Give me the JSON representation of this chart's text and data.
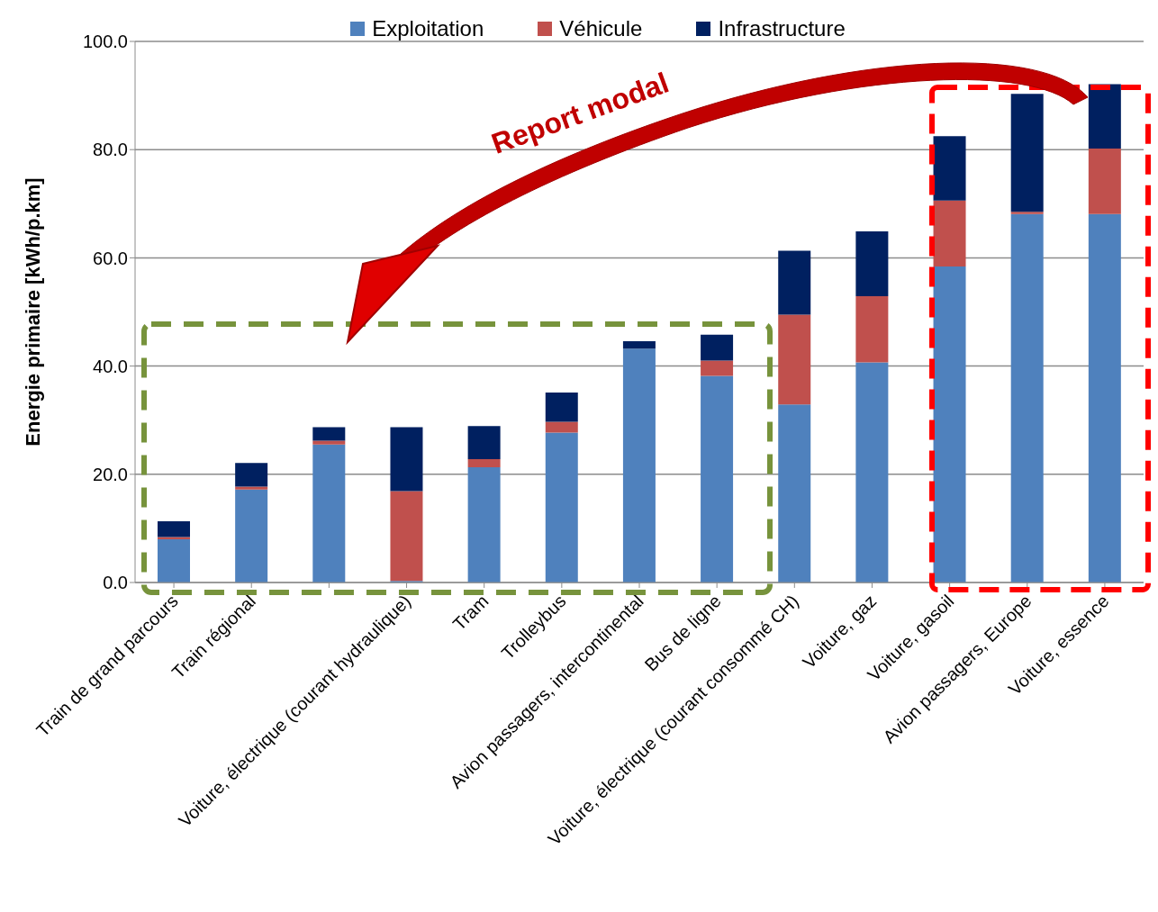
{
  "chart_data": {
    "type": "bar",
    "stacked": true,
    "ylabel": "Energie primaire [kWh/p.km]",
    "categories": [
      "Train de grand parcours",
      "Train régional",
      null,
      "Voiture, électrique (courant hydraulique)",
      "Tram",
      "Trolleybus",
      "Avion passagers, intercontinental",
      "Bus de ligne",
      "Voiture, électrique (courant consommé CH)",
      "Voiture, gaz",
      "Voiture, gasoil",
      "Avion passagers, Europe",
      "Voiture, essence"
    ],
    "series": [
      {
        "name": "Exploitation",
        "color": "#4f81bd",
        "values": [
          8.0,
          17.2,
          25.5,
          0.3,
          21.3,
          27.7,
          43.2,
          38.2,
          32.9,
          40.7,
          58.4,
          68.1,
          68.1
        ]
      },
      {
        "name": "Véhicule",
        "color": "#c0504d",
        "values": [
          0.4,
          0.5,
          0.7,
          16.6,
          1.5,
          2.0,
          0,
          2.8,
          16.6,
          12.2,
          12.2,
          0.4,
          12.1
        ]
      },
      {
        "name": "Infrastructure",
        "color": "#002060",
        "values": [
          2.9,
          4.4,
          2.5,
          11.8,
          6.1,
          5.4,
          1.4,
          4.8,
          11.8,
          12.0,
          11.9,
          21.8,
          11.9
        ]
      }
    ],
    "ylim": [
      0,
      100
    ],
    "yticks": [
      {
        "value": 0,
        "label": "0.0"
      },
      {
        "value": 20,
        "label": "20.0"
      },
      {
        "value": 40,
        "label": "40.0"
      },
      {
        "value": 60,
        "label": "60.0"
      },
      {
        "value": 80,
        "label": "80.0"
      },
      {
        "value": 100,
        "label": "100.0"
      }
    ],
    "grid": "y",
    "legend": "top",
    "annotations": [
      "Report modal"
    ]
  }
}
